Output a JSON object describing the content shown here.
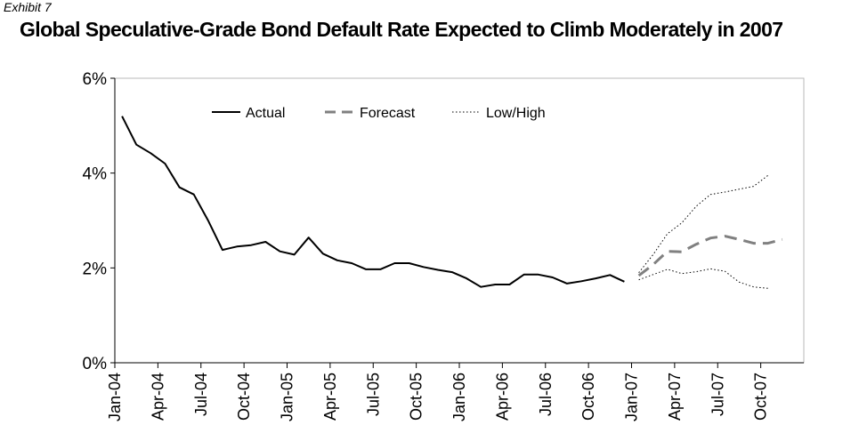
{
  "header": {
    "exhibit": "Exhibit 7",
    "title": "Global Speculative-Grade Bond Default Rate Expected to Climb Moderately in 2007"
  },
  "chart_data": {
    "type": "line",
    "title": "Global Speculative-Grade Bond Default Rate Expected to Climb Moderately in 2007",
    "xlabel": "",
    "ylabel": "",
    "ylim": [
      0,
      6
    ],
    "y_ticks": [
      0,
      2,
      4,
      6
    ],
    "y_tick_labels": [
      "0%",
      "2%",
      "4%",
      "6%"
    ],
    "x_start": "Jan-04",
    "x_end": "Dec-07",
    "x_ticks": [
      "Jan-04",
      "Apr-04",
      "Jul-04",
      "Oct-04",
      "Jan-05",
      "Apr-05",
      "Jul-05",
      "Oct-05",
      "Jan-06",
      "Apr-06",
      "Jul-06",
      "Oct-06",
      "Jan-07",
      "Apr-07",
      "Jul-07",
      "Oct-07"
    ],
    "grid": false,
    "legend_position": "top-center",
    "series": [
      {
        "name": "Actual",
        "style": "solid",
        "color": "#000000",
        "points": [
          [
            "Jan-04",
            5.2
          ],
          [
            "Feb-04",
            4.6
          ],
          [
            "Mar-04",
            4.42
          ],
          [
            "Apr-04",
            4.2
          ],
          [
            "May-04",
            3.7
          ],
          [
            "Jun-04",
            3.55
          ],
          [
            "Jul-04",
            3.0
          ],
          [
            "Aug-04",
            2.38
          ],
          [
            "Sep-04",
            2.45
          ],
          [
            "Oct-04",
            2.48
          ],
          [
            "Nov-04",
            2.55
          ],
          [
            "Dec-04",
            2.35
          ],
          [
            "Jan-05",
            2.28
          ],
          [
            "Feb-05",
            2.64
          ],
          [
            "Mar-05",
            2.3
          ],
          [
            "Apr-05",
            2.16
          ],
          [
            "May-05",
            2.1
          ],
          [
            "Jun-05",
            1.97
          ],
          [
            "Jul-05",
            1.97
          ],
          [
            "Aug-05",
            2.1
          ],
          [
            "Sep-05",
            2.1
          ],
          [
            "Oct-05",
            2.02
          ],
          [
            "Nov-05",
            1.96
          ],
          [
            "Dec-05",
            1.91
          ],
          [
            "Jan-06",
            1.78
          ],
          [
            "Feb-06",
            1.6
          ],
          [
            "Mar-06",
            1.65
          ],
          [
            "Apr-06",
            1.65
          ],
          [
            "May-06",
            1.86
          ],
          [
            "Jun-06",
            1.86
          ],
          [
            "Jul-06",
            1.8
          ],
          [
            "Aug-06",
            1.67
          ],
          [
            "Sep-06",
            1.72
          ],
          [
            "Oct-06",
            1.78
          ],
          [
            "Nov-06",
            1.85
          ],
          [
            "Dec-06",
            1.71
          ]
        ]
      },
      {
        "name": "Forecast",
        "style": "dashed",
        "color": "#808080",
        "points": [
          [
            "Jan-07",
            1.84
          ],
          [
            "Feb-07",
            2.07
          ],
          [
            "Mar-07",
            2.35
          ],
          [
            "Apr-07",
            2.34
          ],
          [
            "May-07",
            2.5
          ],
          [
            "Jun-07",
            2.63
          ],
          [
            "Jul-07",
            2.67
          ],
          [
            "Aug-07",
            2.6
          ],
          [
            "Sep-07",
            2.52
          ],
          [
            "Oct-07",
            2.52
          ],
          [
            "Nov-07",
            2.6
          ]
        ]
      },
      {
        "name": "Low/High",
        "style": "dotted",
        "color": "#000000",
        "sub": [
          {
            "points": [
              [
                "Jan-07",
                1.9
              ],
              [
                "Feb-07",
                2.28
              ],
              [
                "Mar-07",
                2.72
              ],
              [
                "Apr-07",
                2.95
              ],
              [
                "May-07",
                3.3
              ],
              [
                "Jun-07",
                3.55
              ],
              [
                "Jul-07",
                3.6
              ],
              [
                "Aug-07",
                3.66
              ],
              [
                "Sep-07",
                3.72
              ],
              [
                "Oct-07",
                3.95
              ]
            ]
          },
          {
            "points": [
              [
                "Jan-07",
                1.75
              ],
              [
                "Feb-07",
                1.86
              ],
              [
                "Mar-07",
                1.97
              ],
              [
                "Apr-07",
                1.88
              ],
              [
                "May-07",
                1.92
              ],
              [
                "Jun-07",
                1.98
              ],
              [
                "Jul-07",
                1.93
              ],
              [
                "Aug-07",
                1.7
              ],
              [
                "Sep-07",
                1.6
              ],
              [
                "Oct-07",
                1.57
              ]
            ]
          }
        ]
      }
    ]
  }
}
